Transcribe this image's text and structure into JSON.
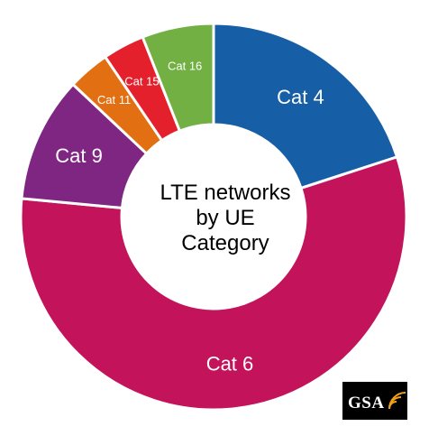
{
  "chart_data": {
    "type": "pie",
    "donut": true,
    "title": "",
    "center_label": [
      "LTE networks",
      "by UE",
      "Category"
    ],
    "slices": [
      {
        "label": "Cat 4",
        "value": 20.0,
        "color": "#165ea6"
      },
      {
        "label": "Cat 6",
        "value": 56.5,
        "color": "#c2135b"
      },
      {
        "label": "Cat 9",
        "value": 10.5,
        "color": "#7f2683"
      },
      {
        "label": "Cat 11",
        "value": 3.5,
        "color": "#e26f12"
      },
      {
        "label": "Cat 15",
        "value": 3.5,
        "color": "#e3202b"
      },
      {
        "label": "Cat 16",
        "value": 6.0,
        "color": "#72b043"
      }
    ],
    "legend": "none",
    "labels_on_slices": true
  },
  "logo": {
    "text": "GSA"
  }
}
